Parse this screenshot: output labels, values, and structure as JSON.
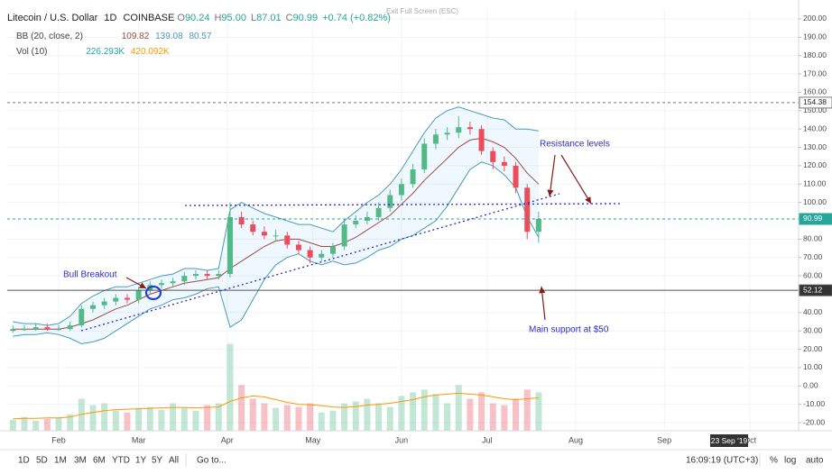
{
  "chart_data": {
    "type": "candlestick",
    "title": "Litecoin / U.S. Dollar",
    "interval": "1D",
    "exchange": "COINBASE",
    "readout": [
      {
        "key": "O",
        "value": "90.24"
      },
      {
        "key": "H",
        "value": "95.00"
      },
      {
        "key": "L",
        "value": "87.01"
      },
      {
        "key": "C",
        "value": "90.99"
      }
    ],
    "change": "+0.74 (+0.82%)",
    "bb_legend": {
      "label": "BB (20, close, 2)",
      "values": [
        "109.82",
        "139.08",
        "80.57"
      ]
    },
    "vol_legend": {
      "label": "Vol (10)",
      "values": [
        "226.293K",
        "420.092K"
      ]
    },
    "exit_fullscreen": "Exit Full Screen (ESC)",
    "x": [
      2,
      6,
      10,
      14,
      18,
      22,
      26,
      30,
      34,
      38,
      42,
      46,
      50,
      54,
      58,
      62,
      66,
      70,
      74,
      78,
      82,
      86,
      90,
      94,
      98,
      102,
      106,
      110,
      114,
      118,
      122,
      126,
      130,
      134,
      138,
      142,
      146,
      150,
      154,
      158,
      162,
      166,
      170,
      174,
      178,
      182,
      186
    ],
    "open": [
      30,
      31,
      31,
      32,
      31,
      31,
      33,
      42,
      44,
      46,
      48,
      47,
      52,
      55,
      56,
      57,
      60,
      61,
      60,
      61,
      92,
      88,
      84,
      82,
      82,
      77,
      74,
      70,
      72,
      76,
      88,
      90,
      92,
      97,
      104,
      110,
      118,
      132,
      137,
      138,
      141,
      140,
      128,
      122,
      120,
      108,
      84
    ],
    "high": [
      33,
      33,
      34,
      34,
      33,
      35,
      44,
      46,
      48,
      50,
      50,
      54,
      57,
      58,
      59,
      62,
      63,
      63,
      63,
      100,
      95,
      90,
      87,
      85,
      84,
      79,
      76,
      74,
      78,
      91,
      93,
      95,
      100,
      107,
      113,
      121,
      135,
      140,
      141,
      147,
      144,
      142,
      130,
      125,
      122,
      110,
      95
    ],
    "low": [
      29,
      30,
      30,
      30,
      30,
      30,
      32,
      40,
      42,
      44,
      45,
      45,
      50,
      53,
      54,
      55,
      58,
      58,
      58,
      59,
      86,
      82,
      80,
      79,
      75,
      72,
      67,
      68,
      70,
      74,
      86,
      88,
      90,
      95,
      101,
      108,
      116,
      129,
      134,
      135,
      137,
      126,
      118,
      117,
      105,
      80,
      78
    ],
    "close": [
      31,
      31,
      32,
      31,
      31,
      33,
      42,
      44,
      46,
      48,
      47,
      52,
      55,
      56,
      57,
      60,
      61,
      60,
      61,
      92,
      88,
      84,
      82,
      82,
      77,
      74,
      70,
      72,
      76,
      88,
      90,
      92,
      97,
      104,
      110,
      118,
      132,
      137,
      138,
      141,
      140,
      128,
      122,
      120,
      108,
      84,
      91
    ],
    "up_color": "#53b987",
    "down_color": "#eb4d5c",
    "bollinger": {
      "upper": [
        35,
        34,
        34,
        33,
        34,
        38,
        45,
        49,
        52,
        54,
        54,
        56,
        58,
        60,
        61,
        64,
        64,
        63,
        64,
        96,
        100,
        97,
        94,
        92,
        90,
        88,
        88,
        86,
        84,
        90,
        95,
        100,
        104,
        110,
        118,
        128,
        138,
        146,
        150,
        152,
        150,
        148,
        146,
        145,
        140,
        140,
        139
      ],
      "middle": [
        31,
        31,
        31,
        31,
        31,
        32,
        34,
        36,
        39,
        42,
        44,
        47,
        50,
        52,
        54,
        56,
        57,
        58,
        59,
        64,
        68,
        72,
        76,
        79,
        80,
        80,
        78,
        76,
        76,
        78,
        81,
        85,
        89,
        93,
        99,
        105,
        112,
        118,
        124,
        130,
        134,
        135,
        133,
        130,
        124,
        116,
        110
      ],
      "lower": [
        27,
        28,
        28,
        29,
        28,
        26,
        23,
        24,
        26,
        30,
        34,
        38,
        42,
        44,
        47,
        48,
        50,
        53,
        54,
        32,
        36,
        47,
        58,
        66,
        70,
        72,
        68,
        66,
        68,
        66,
        67,
        70,
        74,
        76,
        80,
        82,
        86,
        90,
        98,
        108,
        118,
        122,
        120,
        115,
        108,
        92,
        81
      ],
      "band_color": "#4a9bb7",
      "middle_color": "#a34b3f"
    },
    "volume": {
      "values": [
        120,
        150,
        110,
        130,
        140,
        180,
        350,
        280,
        300,
        220,
        200,
        250,
        260,
        230,
        300,
        250,
        220,
        280,
        300,
        950,
        500,
        350,
        300,
        250,
        280,
        260,
        300,
        200,
        220,
        300,
        320,
        350,
        300,
        260,
        380,
        420,
        450,
        400,
        300,
        500,
        350,
        420,
        300,
        280,
        350,
        450,
        420
      ],
      "ma": [
        130,
        135,
        135,
        140,
        140,
        150,
        180,
        200,
        220,
        230,
        235,
        240,
        245,
        250,
        255,
        255,
        250,
        255,
        260,
        320,
        360,
        380,
        370,
        340,
        310,
        290,
        285,
        275,
        260,
        255,
        265,
        280,
        290,
        300,
        320,
        340,
        370,
        390,
        400,
        410,
        400,
        390,
        370,
        350,
        340,
        350,
        360
      ],
      "ma_color": "#ff9800",
      "y2lim": [
        0,
        4600
      ]
    },
    "xlim": [
      0,
      277
    ],
    "xticks": [
      {
        "value": 18,
        "label": "Feb"
      },
      {
        "value": 46,
        "label": "Mar"
      },
      {
        "value": 77,
        "label": "Apr"
      },
      {
        "value": 107,
        "label": "May"
      },
      {
        "value": 138,
        "label": "Jun"
      },
      {
        "value": 168,
        "label": "Jul"
      },
      {
        "value": 199,
        "label": "Aug"
      },
      {
        "value": 230,
        "label": "Sep"
      },
      {
        "value": 260,
        "label": "Oct"
      }
    ],
    "ylim": [
      -24.4,
      204.9
    ],
    "yticks": [
      {
        "value": 200,
        "label": "200.00"
      },
      {
        "value": 190,
        "label": "190.00"
      },
      {
        "value": 180,
        "label": "180.00"
      },
      {
        "value": 170,
        "label": "170.00"
      },
      {
        "value": 160,
        "label": "160.00"
      },
      {
        "value": 150,
        "label": "150.00"
      },
      {
        "value": 140,
        "label": "140.00"
      },
      {
        "value": 130,
        "label": "130.00"
      },
      {
        "value": 120,
        "label": "120.00"
      },
      {
        "value": 110,
        "label": "110.00"
      },
      {
        "value": 100,
        "label": "100.00"
      },
      {
        "value": 80,
        "label": "80.00"
      },
      {
        "value": 70,
        "label": "70.00"
      },
      {
        "value": 60,
        "label": "60.00"
      },
      {
        "value": 40,
        "label": "40.00"
      },
      {
        "value": 30,
        "label": "30.00"
      },
      {
        "value": 20,
        "label": "20.00"
      },
      {
        "value": 10,
        "label": "10.00"
      },
      {
        "value": 0,
        "label": "0.00"
      },
      {
        "value": -10,
        "label": "-10.00"
      },
      {
        "value": -20,
        "label": "-20.00"
      }
    ],
    "grid": true,
    "price_lines": [
      {
        "value": 154.38,
        "color": "#777777",
        "label_fill": "#ffffff",
        "label_text": "#222222"
      },
      {
        "value": 90.99,
        "color": "#26a69a",
        "label_fill": "#26a69a",
        "label_text": "#ffffff"
      },
      {
        "value": 52.12,
        "color": "#555555",
        "label_fill": "#333333",
        "label_text": "#ffffff"
      }
    ],
    "annotations": [
      "Bull Breakout",
      "Resistance levels",
      "Main support at $50"
    ],
    "crosshair_date": "23 Sep '19"
  },
  "toolbar": {
    "ranges": [
      "1D",
      "5D",
      "1M",
      "3M",
      "6M",
      "YTD",
      "1Y",
      "5Y",
      "All"
    ],
    "goto": "Go to...",
    "clock": "16:09:19 (UTC+3)",
    "options": [
      "%",
      "log",
      "auto"
    ]
  }
}
